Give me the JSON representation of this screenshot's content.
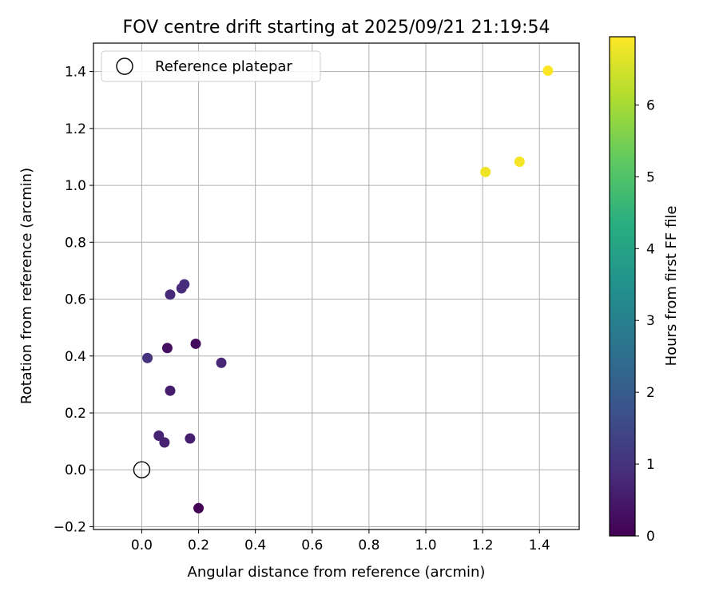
{
  "chart_data": {
    "type": "scatter",
    "title": "FOV centre drift starting at 2025/09/21 21:19:54",
    "xlabel": "Angular distance from reference (arcmin)",
    "ylabel": "Rotation from reference (arcmin)",
    "xlim": [
      -0.17,
      1.54
    ],
    "ylim": [
      -0.21,
      1.5
    ],
    "xticks": [
      0.0,
      0.2,
      0.4,
      0.6,
      0.8,
      1.0,
      1.2,
      1.4
    ],
    "xtick_labels": [
      "0.0",
      "0.2",
      "0.4",
      "0.6",
      "0.8",
      "1.0",
      "1.2",
      "1.4"
    ],
    "yticks": [
      -0.2,
      0.0,
      0.2,
      0.4,
      0.6,
      0.8,
      1.0,
      1.2,
      1.4
    ],
    "ytick_labels": [
      "−0.2",
      "0.0",
      "0.2",
      "0.4",
      "0.6",
      "0.8",
      "1.0",
      "1.2",
      "1.4"
    ],
    "grid": true,
    "legend": {
      "placement": "top-left",
      "entries": [
        "Reference platepar"
      ]
    },
    "colorbar": {
      "label": "Hours from first FF file",
      "colormap": "viridis",
      "range": [
        0,
        6.95
      ],
      "ticks": [
        0,
        1,
        2,
        3,
        4,
        5,
        6
      ],
      "tick_labels": [
        "0",
        "1",
        "2",
        "3",
        "4",
        "5",
        "6"
      ]
    },
    "reference_point": {
      "x": 0.0,
      "y": 0.0
    },
    "points": [
      {
        "x": 0.2,
        "y": -0.135,
        "hours": 0.05
      },
      {
        "x": 0.19,
        "y": 0.443,
        "hours": 0.15
      },
      {
        "x": 0.09,
        "y": 0.428,
        "hours": 0.3
      },
      {
        "x": 0.1,
        "y": 0.278,
        "hours": 0.55
      },
      {
        "x": 0.17,
        "y": 0.11,
        "hours": 0.6
      },
      {
        "x": 0.08,
        "y": 0.096,
        "hours": 0.65
      },
      {
        "x": 0.06,
        "y": 0.12,
        "hours": 0.7
      },
      {
        "x": 0.28,
        "y": 0.376,
        "hours": 0.75
      },
      {
        "x": 0.1,
        "y": 0.616,
        "hours": 0.8
      },
      {
        "x": 0.14,
        "y": 0.638,
        "hours": 0.85
      },
      {
        "x": 0.15,
        "y": 0.652,
        "hours": 0.9
      },
      {
        "x": 0.02,
        "y": 0.393,
        "hours": 1.0
      },
      {
        "x": 1.21,
        "y": 1.047,
        "hours": 6.8
      },
      {
        "x": 1.33,
        "y": 1.083,
        "hours": 6.85
      },
      {
        "x": 1.43,
        "y": 1.403,
        "hours": 6.95
      }
    ]
  }
}
